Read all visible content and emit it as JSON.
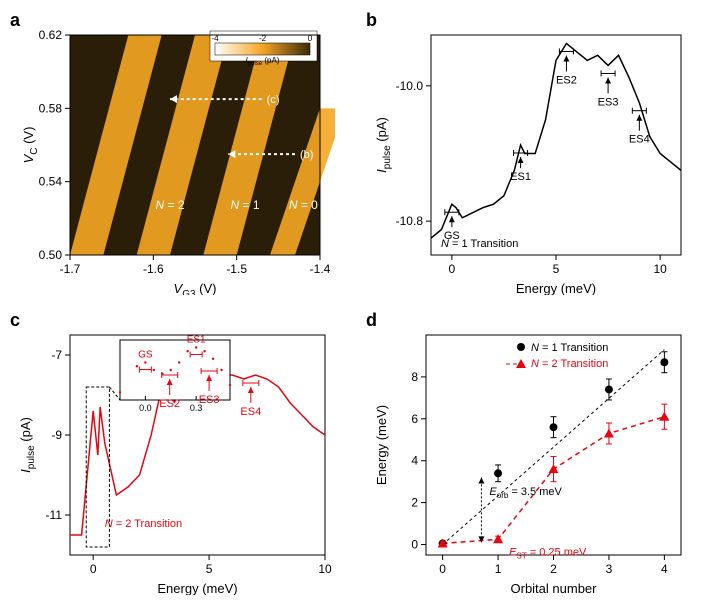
{
  "panel_a": {
    "label": "a",
    "xlabel": "V_G3 (V)",
    "ylabel": "V_C (V)",
    "xlim": [
      -1.7,
      -1.4
    ],
    "ylim": [
      0.5,
      0.62
    ],
    "xticks": [
      -1.7,
      -1.6,
      -1.5,
      -1.4
    ],
    "yticks": [
      0.5,
      0.54,
      0.58,
      0.62
    ],
    "colorbar_label": "I_pulse (pA)",
    "colorbar_ticks": [
      -4,
      -2,
      0
    ],
    "colorbar_colors": [
      "#ffffff",
      "#f5a623",
      "#3a2a08"
    ],
    "annotations": [
      "N = 2",
      "N = 1",
      "N = 0"
    ],
    "arrow_labels": [
      "(c)",
      "(b)"
    ],
    "background_dark": "#2a1e08",
    "stripe_color": "#f5a623",
    "font_size": 12
  },
  "panel_b": {
    "label": "b",
    "xlabel": "Energy (meV)",
    "ylabel": "I_pulse (pA)",
    "xlim": [
      -1,
      11
    ],
    "ylim": [
      -11.0,
      -9.7
    ],
    "xticks": [
      0,
      5,
      10
    ],
    "yticks": [
      -10.8,
      -10.0
    ],
    "line_color": "#000000",
    "title_text": "N = 1 Transition",
    "peak_labels": [
      "GS",
      "ES1",
      "ES2",
      "ES3",
      "ES4"
    ],
    "data": [
      [
        -1,
        -10.9
      ],
      [
        -0.5,
        -10.85
      ],
      [
        0,
        -10.7
      ],
      [
        0.2,
        -10.72
      ],
      [
        0.5,
        -10.78
      ],
      [
        1,
        -10.75
      ],
      [
        1.5,
        -10.72
      ],
      [
        2,
        -10.7
      ],
      [
        2.5,
        -10.65
      ],
      [
        3,
        -10.5
      ],
      [
        3.3,
        -10.35
      ],
      [
        3.5,
        -10.4
      ],
      [
        4,
        -10.4
      ],
      [
        4.5,
        -10.2
      ],
      [
        5,
        -9.85
      ],
      [
        5.5,
        -9.75
      ],
      [
        6,
        -9.8
      ],
      [
        6.5,
        -9.85
      ],
      [
        7,
        -9.82
      ],
      [
        7.5,
        -9.88
      ],
      [
        8,
        -9.82
      ],
      [
        8.5,
        -9.95
      ],
      [
        9,
        -10.1
      ],
      [
        9.5,
        -10.3
      ],
      [
        10,
        -10.4
      ],
      [
        10.5,
        -10.45
      ],
      [
        11,
        -10.5
      ]
    ],
    "font_size": 12
  },
  "panel_c": {
    "label": "c",
    "xlabel": "Energy (meV)",
    "ylabel": "I_pulse (pA)",
    "xlim": [
      -1,
      10
    ],
    "ylim": [
      -12,
      -6.5
    ],
    "xticks": [
      0,
      5,
      10
    ],
    "yticks": [
      -11,
      -9,
      -7
    ],
    "line_color": "#e30613",
    "title_text": "N = 2 Transition",
    "peak_labels": [
      "ES2",
      "ES3",
      "ES4"
    ],
    "inset_labels": [
      "GS",
      "ES1"
    ],
    "inset_xticks": [
      0.0,
      0.3
    ],
    "data": [
      [
        -1,
        -11.5
      ],
      [
        -0.5,
        -11.5
      ],
      [
        0,
        -8.4
      ],
      [
        0.2,
        -9.5
      ],
      [
        0.3,
        -8.3
      ],
      [
        0.5,
        -9.2
      ],
      [
        1,
        -10.5
      ],
      [
        1.5,
        -10.3
      ],
      [
        2,
        -10.0
      ],
      [
        2.5,
        -9.0
      ],
      [
        3,
        -7.7
      ],
      [
        3.3,
        -7.3
      ],
      [
        3.5,
        -8.2
      ],
      [
        4,
        -7.3
      ],
      [
        4.5,
        -7.4
      ],
      [
        5,
        -7.2
      ],
      [
        5.5,
        -7.5
      ],
      [
        6,
        -7.5
      ],
      [
        6.5,
        -7.6
      ],
      [
        7,
        -7.5
      ],
      [
        7.5,
        -7.6
      ],
      [
        8,
        -7.8
      ],
      [
        8.5,
        -8.2
      ],
      [
        9,
        -8.5
      ],
      [
        9.5,
        -8.8
      ],
      [
        10,
        -9.0
      ]
    ],
    "inset_data": [
      [
        -0.15,
        -8.8
      ],
      [
        -0.05,
        -8.45
      ],
      [
        0,
        -8.4
      ],
      [
        0.05,
        -8.5
      ],
      [
        0.1,
        -8.55
      ],
      [
        0.15,
        -8.5
      ],
      [
        0.2,
        -8.4
      ],
      [
        0.25,
        -8.25
      ],
      [
        0.3,
        -8.2
      ],
      [
        0.35,
        -8.25
      ],
      [
        0.4,
        -8.35
      ],
      [
        0.45,
        -8.5
      ],
      [
        0.5,
        -8.7
      ]
    ],
    "font_size": 12
  },
  "panel_d": {
    "label": "d",
    "xlabel": "Orbital number",
    "ylabel": "Energy (meV)",
    "xlim": [
      -0.3,
      4.3
    ],
    "ylim": [
      -0.5,
      10
    ],
    "xticks": [
      0,
      1,
      2,
      3,
      4
    ],
    "yticks": [
      0,
      2,
      4,
      6,
      8
    ],
    "legend": [
      "N = 1 Transition",
      "N = 2 Transition"
    ],
    "series1_color": "#000000",
    "series2_color": "#e30613",
    "series1_marker": "circle",
    "series2_marker": "triangle",
    "series1": [
      [
        0,
        0.05,
        0.1
      ],
      [
        1,
        3.4,
        0.4
      ],
      [
        2,
        5.6,
        0.5
      ],
      [
        3,
        7.4,
        0.5
      ],
      [
        4,
        8.7,
        0.5
      ]
    ],
    "series2": [
      [
        0,
        0.05,
        0.1
      ],
      [
        1,
        0.25,
        0.15
      ],
      [
        2,
        3.6,
        0.6
      ],
      [
        3,
        5.3,
        0.5
      ],
      [
        4,
        6.1,
        0.6
      ]
    ],
    "eorb_text": "E_orb = 3.5 meV",
    "est_text": "E_ST = 0.25 meV",
    "font_size": 12
  }
}
